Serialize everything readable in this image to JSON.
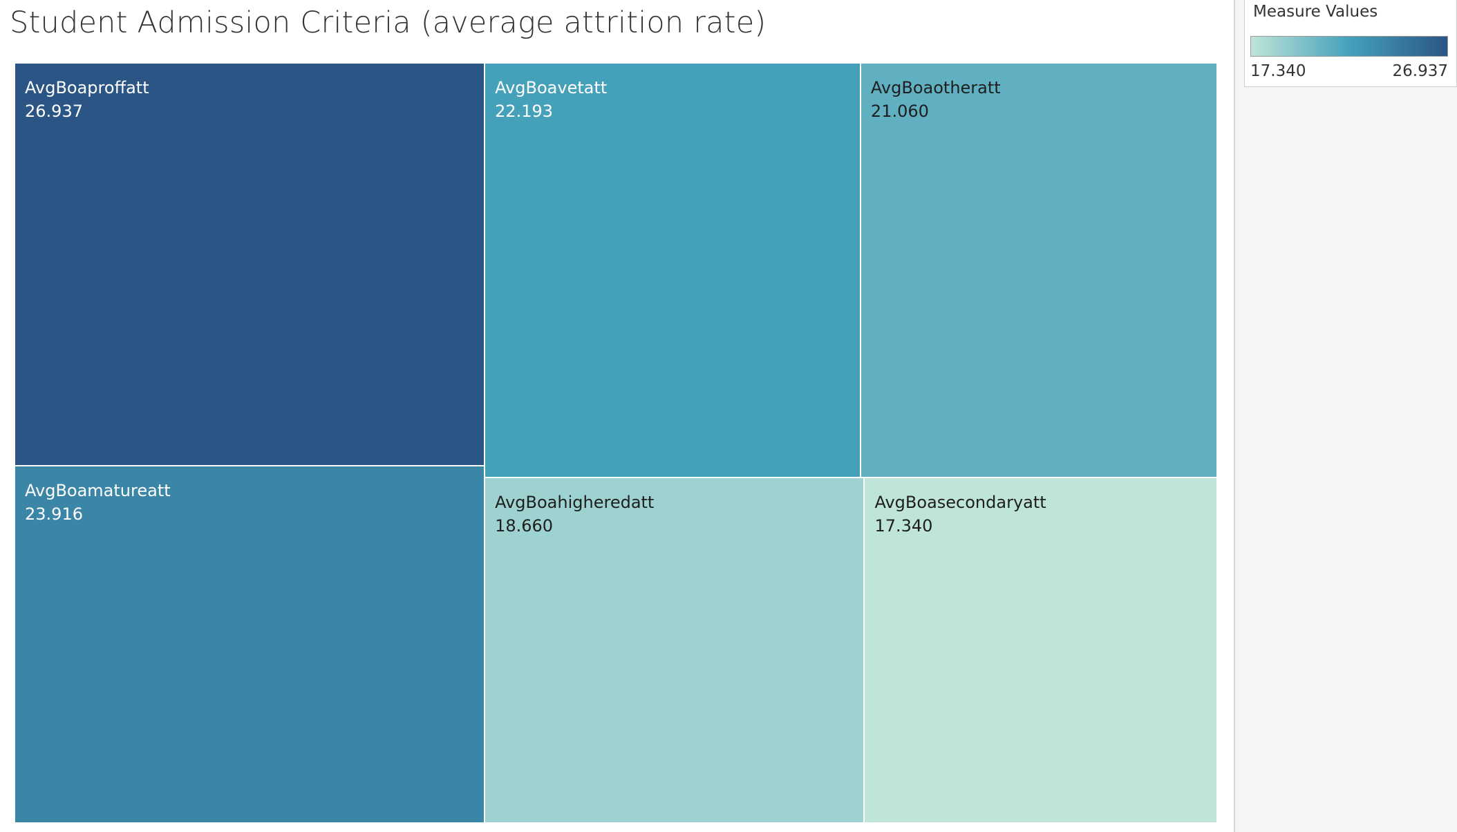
{
  "chart_data": {
    "type": "treemap",
    "title": "Student Admission Criteria (average attrition rate)",
    "measure": "average attrition rate",
    "items": [
      {
        "name": "AvgBoaproffatt",
        "value": 26.937
      },
      {
        "name": "AvgBoamatureatt",
        "value": 23.916
      },
      {
        "name": "AvgBoavetatt",
        "value": 22.193
      },
      {
        "name": "AvgBoaotheratt",
        "value": 21.06
      },
      {
        "name": "AvgBoahigheredatt",
        "value": 18.66
      },
      {
        "name": "AvgBoasecondaryatt",
        "value": 17.34
      }
    ],
    "value_labels": [
      "26.937",
      "23.916",
      "22.193",
      "21.060",
      "18.660",
      "17.340"
    ],
    "legend": {
      "title": "Measure Values",
      "min_label": "17.340",
      "max_label": "26.937",
      "min": 17.34,
      "max": 26.937,
      "color_stops": [
        "#bfe4d8",
        "#45a1bb",
        "#2b5584"
      ],
      "placement": "top-right"
    }
  }
}
